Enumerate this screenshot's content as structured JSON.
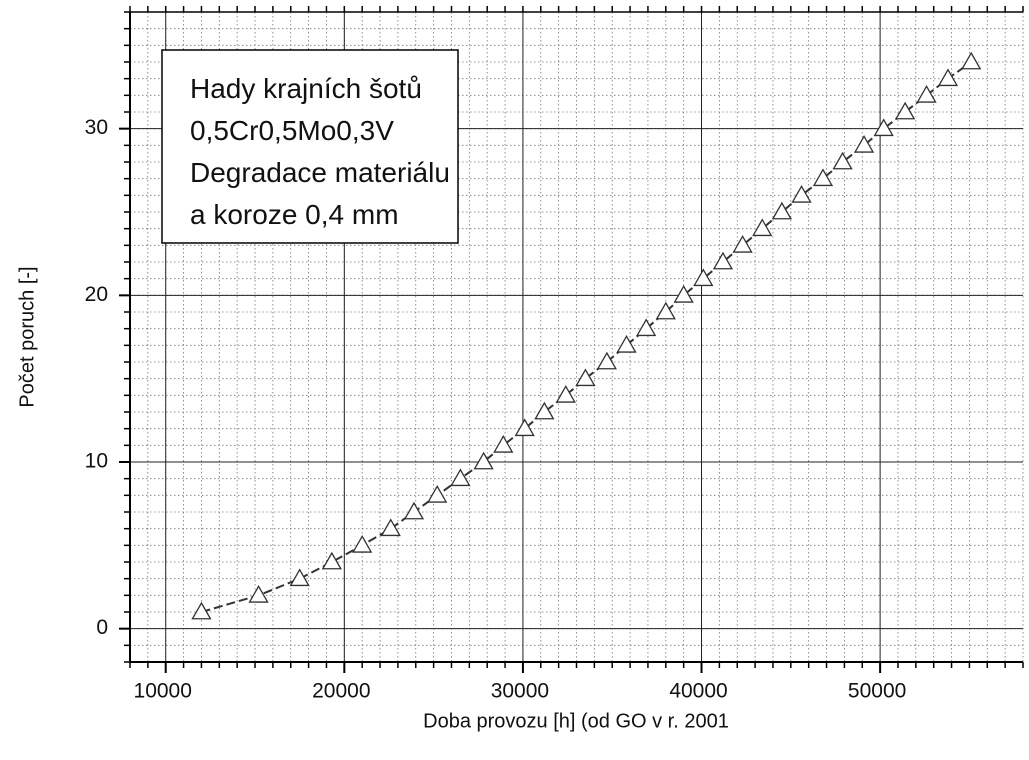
{
  "chart_data": {
    "type": "line",
    "xlabel": "Doba provozu [h] (od GO v r. 2001",
    "ylabel": "Počet poruch [-]",
    "annotation": [
      "Hady krajních šotů",
      "0,5Cr0,5Mo0,3V",
      "Degradace materiálu",
      "a koroze 0,4 mm"
    ],
    "xlim": [
      8000,
      58000
    ],
    "xticks": [
      10000,
      20000,
      30000,
      40000,
      50000
    ],
    "x_minor_step": 1000,
    "ylim": [
      -2,
      37
    ],
    "yticks": [
      0,
      10,
      20,
      30
    ],
    "y_minor_step": 1,
    "grid": true,
    "marker": "triangle",
    "line_style": "dashed",
    "series": [
      {
        "color": "#333333",
        "x": [
          12000,
          15200,
          17500,
          19300,
          21000,
          22600,
          23900,
          25200,
          26500,
          27800,
          28900,
          30100,
          31200,
          32400,
          33500,
          34700,
          35800,
          36900,
          38000,
          39000,
          40100,
          41200,
          42300,
          43400,
          44500,
          45600,
          46800,
          47900,
          49100,
          50200,
          51400,
          52600,
          53800,
          55100
        ],
        "values": [
          1,
          2,
          3,
          4,
          5,
          6,
          7,
          8,
          9,
          10,
          11,
          12,
          13,
          14,
          15,
          16,
          17,
          18,
          19,
          20,
          21,
          22,
          23,
          24,
          25,
          26,
          27,
          28,
          29,
          30,
          31,
          32,
          33,
          34
        ]
      }
    ]
  }
}
